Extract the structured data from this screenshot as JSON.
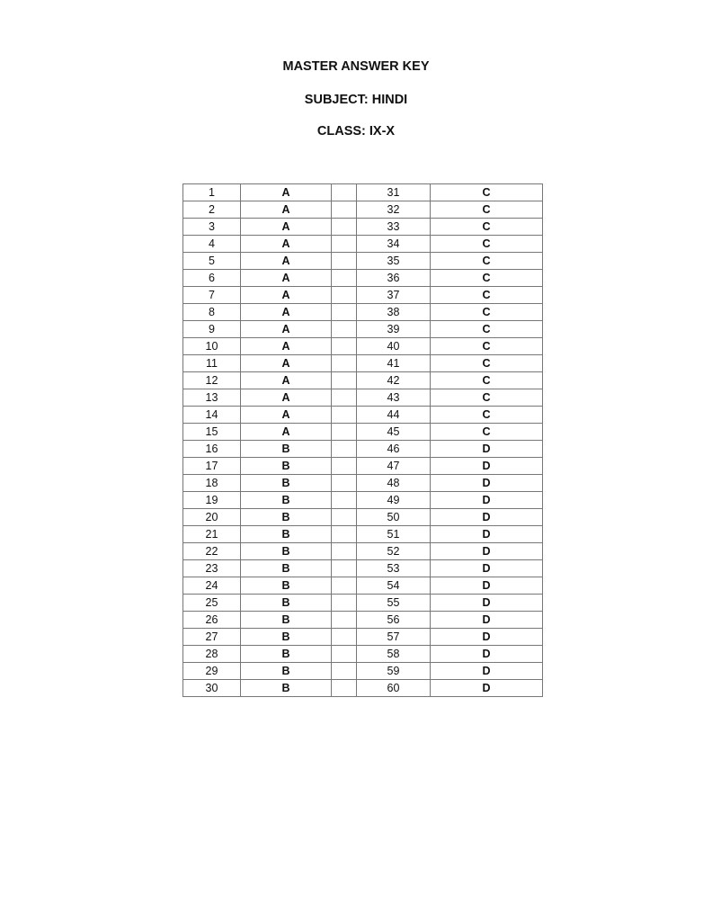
{
  "header": {
    "title": "MASTER ANSWER KEY",
    "subject": "SUBJECT: HINDI",
    "class": "CLASS:  IX-X"
  },
  "rows": [
    {
      "q1": "1",
      "a1": "A",
      "q2": "31",
      "a2": "C"
    },
    {
      "q1": "2",
      "a1": "A",
      "q2": "32",
      "a2": "C"
    },
    {
      "q1": "3",
      "a1": "A",
      "q2": "33",
      "a2": "C"
    },
    {
      "q1": "4",
      "a1": "A",
      "q2": "34",
      "a2": "C"
    },
    {
      "q1": "5",
      "a1": "A",
      "q2": "35",
      "a2": "C"
    },
    {
      "q1": "6",
      "a1": "A",
      "q2": "36",
      "a2": "C"
    },
    {
      "q1": "7",
      "a1": "A",
      "q2": "37",
      "a2": "C"
    },
    {
      "q1": "8",
      "a1": "A",
      "q2": "38",
      "a2": "C"
    },
    {
      "q1": "9",
      "a1": "A",
      "q2": "39",
      "a2": "C"
    },
    {
      "q1": "10",
      "a1": "A",
      "q2": "40",
      "a2": "C"
    },
    {
      "q1": "11",
      "a1": "A",
      "q2": "41",
      "a2": "C"
    },
    {
      "q1": "12",
      "a1": "A",
      "q2": "42",
      "a2": "C"
    },
    {
      "q1": "13",
      "a1": "A",
      "q2": "43",
      "a2": "C"
    },
    {
      "q1": "14",
      "a1": "A",
      "q2": "44",
      "a2": "C"
    },
    {
      "q1": "15",
      "a1": "A",
      "q2": "45",
      "a2": "C"
    },
    {
      "q1": "16",
      "a1": "B",
      "q2": "46",
      "a2": "D"
    },
    {
      "q1": "17",
      "a1": "B",
      "q2": "47",
      "a2": "D"
    },
    {
      "q1": "18",
      "a1": "B",
      "q2": "48",
      "a2": "D"
    },
    {
      "q1": "19",
      "a1": "B",
      "q2": "49",
      "a2": "D"
    },
    {
      "q1": "20",
      "a1": "B",
      "q2": "50",
      "a2": "D"
    },
    {
      "q1": "21",
      "a1": "B",
      "q2": "51",
      "a2": "D"
    },
    {
      "q1": "22",
      "a1": "B",
      "q2": "52",
      "a2": "D"
    },
    {
      "q1": "23",
      "a1": "B",
      "q2": "53",
      "a2": "D"
    },
    {
      "q1": "24",
      "a1": "B",
      "q2": "54",
      "a2": "D"
    },
    {
      "q1": "25",
      "a1": "B",
      "q2": "55",
      "a2": "D"
    },
    {
      "q1": "26",
      "a1": "B",
      "q2": "56",
      "a2": "D"
    },
    {
      "q1": "27",
      "a1": "B",
      "q2": "57",
      "a2": "D"
    },
    {
      "q1": "28",
      "a1": "B",
      "q2": "58",
      "a2": "D"
    },
    {
      "q1": "29",
      "a1": "B",
      "q2": "59",
      "a2": "D"
    },
    {
      "q1": "30",
      "a1": "B",
      "q2": "60",
      "a2": "D"
    }
  ]
}
